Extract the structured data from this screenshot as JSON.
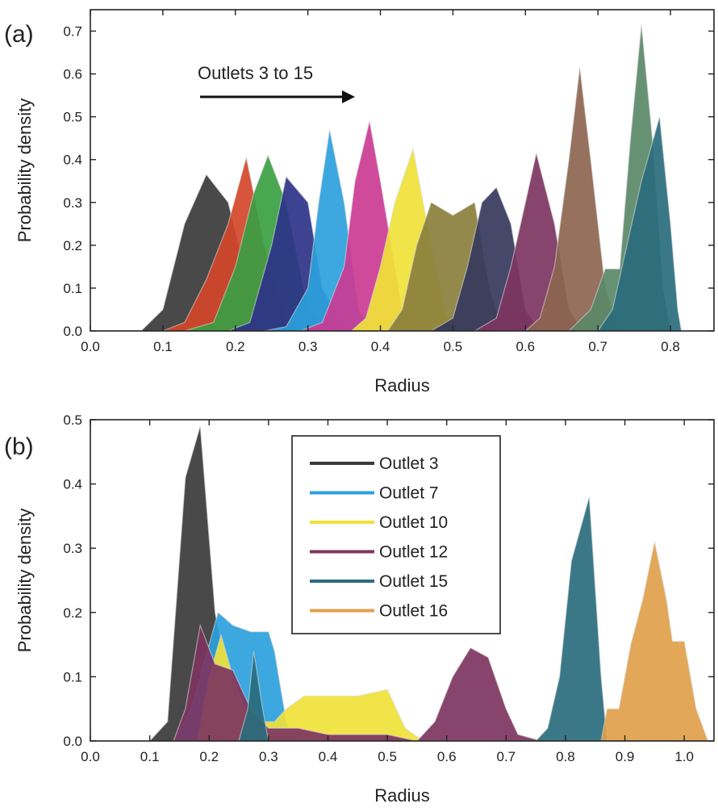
{
  "chart_data": [
    {
      "type": "area",
      "panel_label": "(a)",
      "xlabel": "Radius",
      "ylabel": "Probability density",
      "xlim": [
        0.0,
        0.86
      ],
      "ylim": [
        0.0,
        0.75
      ],
      "xticks": [
        "0.0",
        "0.1",
        "0.2",
        "0.3",
        "0.4",
        "0.5",
        "0.6",
        "0.7",
        "0.8"
      ],
      "yticks": [
        "0.0",
        "0.1",
        "0.2",
        "0.3",
        "0.4",
        "0.5",
        "0.6",
        "0.7"
      ],
      "annotation": "Outlets 3 to 15",
      "series": [
        {
          "color": "#3a3a3a",
          "points": [
            [
              0.07,
              0
            ],
            [
              0.1,
              0.05
            ],
            [
              0.13,
              0.25
            ],
            [
              0.16,
              0.365
            ],
            [
              0.19,
              0.3
            ],
            [
              0.22,
              0.1
            ],
            [
              0.25,
              0.01
            ],
            [
              0.28,
              0
            ]
          ]
        },
        {
          "color": "#d2472a",
          "points": [
            [
              0.1,
              0
            ],
            [
              0.13,
              0.02
            ],
            [
              0.16,
              0.12
            ],
            [
              0.19,
              0.25
            ],
            [
              0.215,
              0.405
            ],
            [
              0.24,
              0.2
            ],
            [
              0.27,
              0.03
            ],
            [
              0.3,
              0
            ]
          ]
        },
        {
          "color": "#3aa043",
          "points": [
            [
              0.13,
              0
            ],
            [
              0.17,
              0.02
            ],
            [
              0.2,
              0.15
            ],
            [
              0.225,
              0.32
            ],
            [
              0.245,
              0.41
            ],
            [
              0.27,
              0.3
            ],
            [
              0.3,
              0.05
            ],
            [
              0.33,
              0
            ]
          ]
        },
        {
          "color": "#2c3388",
          "points": [
            [
              0.19,
              0
            ],
            [
              0.22,
              0.02
            ],
            [
              0.25,
              0.2
            ],
            [
              0.27,
              0.36
            ],
            [
              0.3,
              0.3
            ],
            [
              0.32,
              0.1
            ],
            [
              0.35,
              0.01
            ],
            [
              0.37,
              0
            ]
          ]
        },
        {
          "color": "#2ba1dc",
          "points": [
            [
              0.24,
              0
            ],
            [
              0.27,
              0.01
            ],
            [
              0.3,
              0.1
            ],
            [
              0.315,
              0.3
            ],
            [
              0.33,
              0.47
            ],
            [
              0.35,
              0.3
            ],
            [
              0.37,
              0.05
            ],
            [
              0.39,
              0
            ]
          ]
        },
        {
          "color": "#cc3b94",
          "points": [
            [
              0.29,
              0
            ],
            [
              0.32,
              0.02
            ],
            [
              0.35,
              0.15
            ],
            [
              0.365,
              0.35
            ],
            [
              0.385,
              0.49
            ],
            [
              0.4,
              0.35
            ],
            [
              0.43,
              0.05
            ],
            [
              0.46,
              0
            ]
          ]
        },
        {
          "color": "#f0e23a",
          "points": [
            [
              0.36,
              0
            ],
            [
              0.38,
              0.03
            ],
            [
              0.4,
              0.15
            ],
            [
              0.42,
              0.3
            ],
            [
              0.445,
              0.425
            ],
            [
              0.47,
              0.2
            ],
            [
              0.49,
              0.04
            ],
            [
              0.51,
              0
            ]
          ]
        },
        {
          "color": "#8a7f3c",
          "points": [
            [
              0.41,
              0
            ],
            [
              0.43,
              0.05
            ],
            [
              0.45,
              0.2
            ],
            [
              0.47,
              0.3
            ],
            [
              0.5,
              0.27
            ],
            [
              0.53,
              0.3
            ],
            [
              0.55,
              0.1
            ],
            [
              0.57,
              0
            ]
          ]
        },
        {
          "color": "#35385c",
          "points": [
            [
              0.47,
              0
            ],
            [
              0.5,
              0.03
            ],
            [
              0.52,
              0.15
            ],
            [
              0.54,
              0.3
            ],
            [
              0.56,
              0.335
            ],
            [
              0.58,
              0.25
            ],
            [
              0.6,
              0.05
            ],
            [
              0.62,
              0
            ]
          ]
        },
        {
          "color": "#7d3561",
          "points": [
            [
              0.53,
              0
            ],
            [
              0.56,
              0.03
            ],
            [
              0.58,
              0.15
            ],
            [
              0.6,
              0.3
            ],
            [
              0.615,
              0.415
            ],
            [
              0.64,
              0.25
            ],
            [
              0.66,
              0.05
            ],
            [
              0.68,
              0
            ]
          ]
        },
        {
          "color": "#8c6550",
          "points": [
            [
              0.6,
              0
            ],
            [
              0.62,
              0.03
            ],
            [
              0.64,
              0.15
            ],
            [
              0.66,
              0.4
            ],
            [
              0.675,
              0.615
            ],
            [
              0.69,
              0.4
            ],
            [
              0.71,
              0.1
            ],
            [
              0.73,
              0
            ]
          ]
        },
        {
          "color": "#5a8867",
          "points": [
            [
              0.66,
              0
            ],
            [
              0.69,
              0.05
            ],
            [
              0.71,
              0.145
            ],
            [
              0.73,
              0.145
            ],
            [
              0.745,
              0.45
            ],
            [
              0.76,
              0.715
            ],
            [
              0.775,
              0.45
            ],
            [
              0.79,
              0.1
            ],
            [
              0.8,
              0
            ]
          ]
        },
        {
          "color": "#2a6c7d",
          "points": [
            [
              0.7,
              0
            ],
            [
              0.72,
              0.05
            ],
            [
              0.74,
              0.2
            ],
            [
              0.76,
              0.35
            ],
            [
              0.785,
              0.5
            ],
            [
              0.8,
              0.25
            ],
            [
              0.81,
              0.05
            ],
            [
              0.815,
              0
            ]
          ]
        }
      ]
    },
    {
      "type": "area",
      "panel_label": "(b)",
      "xlabel": "Radius",
      "ylabel": "Probability density",
      "xlim": [
        0.0,
        1.05
      ],
      "ylim": [
        0.0,
        0.5
      ],
      "xticks": [
        "0.0",
        "0.1",
        "0.2",
        "0.3",
        "0.4",
        "0.5",
        "0.6",
        "0.7",
        "0.8",
        "0.9",
        "1.0"
      ],
      "yticks": [
        "0.0",
        "0.1",
        "0.2",
        "0.3",
        "0.4",
        "0.5"
      ],
      "legend_position": "top-center",
      "series": [
        {
          "name": "Outlet 3",
          "color": "#3a3a3a",
          "points": [
            [
              0.1,
              0
            ],
            [
              0.13,
              0.03
            ],
            [
              0.16,
              0.41
            ],
            [
              0.185,
              0.49
            ],
            [
              0.21,
              0.2
            ],
            [
              0.24,
              0.05
            ],
            [
              0.26,
              0.01
            ],
            [
              0.28,
              0
            ]
          ]
        },
        {
          "name": "Outlet 7",
          "color": "#2ba1dc",
          "points": [
            [
              0.14,
              0
            ],
            [
              0.17,
              0.05
            ],
            [
              0.2,
              0.15
            ],
            [
              0.215,
              0.2
            ],
            [
              0.24,
              0.18
            ],
            [
              0.27,
              0.17
            ],
            [
              0.3,
              0.17
            ],
            [
              0.31,
              0.14
            ],
            [
              0.33,
              0.03
            ],
            [
              0.34,
              0
            ]
          ]
        },
        {
          "name": "Outlet 10",
          "color": "#f0e23a",
          "points": [
            [
              0.18,
              0
            ],
            [
              0.2,
              0.1
            ],
            [
              0.22,
              0.165
            ],
            [
              0.24,
              0.1
            ],
            [
              0.27,
              0.03
            ],
            [
              0.31,
              0.03
            ],
            [
              0.33,
              0.05
            ],
            [
              0.36,
              0.07
            ],
            [
              0.4,
              0.07
            ],
            [
              0.45,
              0.07
            ],
            [
              0.5,
              0.08
            ],
            [
              0.53,
              0.02
            ],
            [
              0.56,
              0
            ]
          ]
        },
        {
          "name": "Outlet 12",
          "color": "#7d3561",
          "points": [
            [
              0.14,
              0
            ],
            [
              0.16,
              0.05
            ],
            [
              0.185,
              0.18
            ],
            [
              0.21,
              0.12
            ],
            [
              0.24,
              0.11
            ],
            [
              0.27,
              0.05
            ],
            [
              0.3,
              0.02
            ],
            [
              0.35,
              0.02
            ],
            [
              0.4,
              0.01
            ],
            [
              0.45,
              0.01
            ],
            [
              0.5,
              0.01
            ],
            [
              0.55,
              0
            ],
            [
              0.58,
              0.03
            ],
            [
              0.61,
              0.1
            ],
            [
              0.64,
              0.145
            ],
            [
              0.67,
              0.13
            ],
            [
              0.7,
              0.05
            ],
            [
              0.72,
              0.01
            ],
            [
              0.76,
              0
            ]
          ]
        },
        {
          "name": "Outlet 15",
          "color": "#2a6c7d",
          "points": [
            [
              0.25,
              0
            ],
            [
              0.265,
              0.05
            ],
            [
              0.275,
              0.14
            ],
            [
              0.29,
              0.05
            ],
            [
              0.3,
              0
            ],
            [
              0.75,
              0
            ],
            [
              0.77,
              0.02
            ],
            [
              0.79,
              0.1
            ],
            [
              0.81,
              0.28
            ],
            [
              0.84,
              0.38
            ],
            [
              0.86,
              0.1
            ],
            [
              0.87,
              0
            ]
          ]
        },
        {
          "name": "Outlet 16",
          "color": "#e0a04a",
          "points": [
            [
              0.86,
              0
            ],
            [
              0.87,
              0.05
            ],
            [
              0.89,
              0.05
            ],
            [
              0.91,
              0.15
            ],
            [
              0.93,
              0.22
            ],
            [
              0.95,
              0.31
            ],
            [
              0.97,
              0.22
            ],
            [
              0.98,
              0.155
            ],
            [
              1.0,
              0.155
            ],
            [
              1.02,
              0.05
            ],
            [
              1.04,
              0
            ]
          ]
        }
      ]
    }
  ]
}
